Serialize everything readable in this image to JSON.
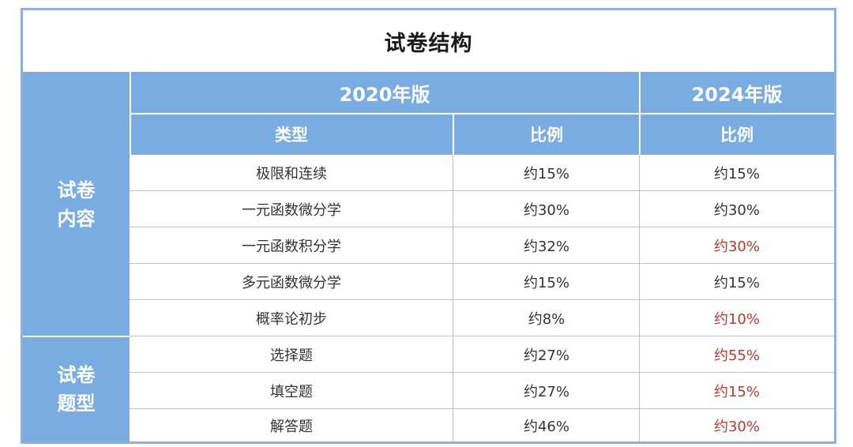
{
  "title": "试卷结构",
  "header": {
    "v2020": "2020年版",
    "v2024": "2024年版",
    "type_label": "类型",
    "ratio_label_2020": "比例",
    "ratio_label_2024": "比例"
  },
  "sections": [
    {
      "label_line1": "试卷",
      "label_line2": "内容"
    },
    {
      "label_line1": "试卷",
      "label_line2": "题型"
    }
  ],
  "rows": [
    {
      "type": "极限和连续",
      "r2020": "约15%",
      "r2024": "约15%",
      "changed": false
    },
    {
      "type": "一元函数微分学",
      "r2020": "约30%",
      "r2024": "约30%",
      "changed": false
    },
    {
      "type": "一元函数积分学",
      "r2020": "约32%",
      "r2024": "约30%",
      "changed": true
    },
    {
      "type": "多元函数微分学",
      "r2020": "约15%",
      "r2024": "约15%",
      "changed": false
    },
    {
      "type": "概率论初步",
      "r2020": "约8%",
      "r2024": "约10%",
      "changed": true
    },
    {
      "type": "选择题",
      "r2020": "约27%",
      "r2024": "约55%",
      "changed": true
    },
    {
      "type": "填空题",
      "r2020": "约27%",
      "r2024": "约15%",
      "changed": true
    },
    {
      "type": "解答题",
      "r2020": "约46%",
      "r2024": "约30%",
      "changed": true
    }
  ],
  "colors": {
    "header_bg": "#79ade2",
    "border": "#8fb0d9",
    "changed_text": "#c0392b"
  }
}
